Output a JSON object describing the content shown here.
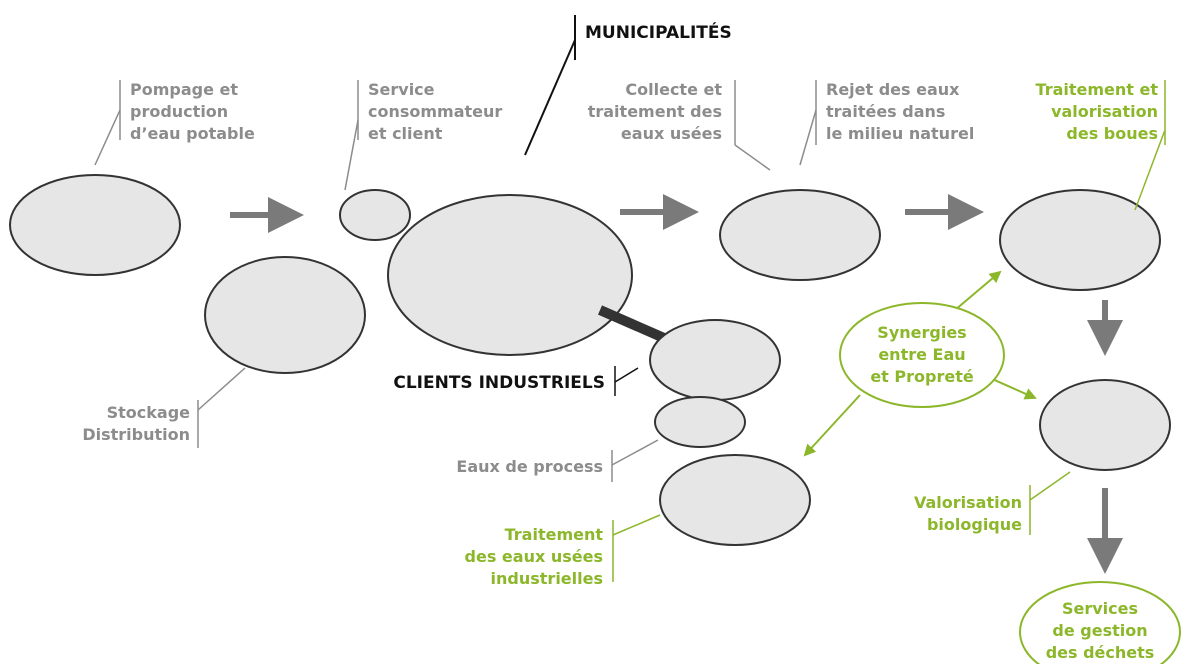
{
  "header": {
    "municipalites": "MUNICIPALITÉS",
    "clients_industriels": "CLIENTS INDUSTRIELS"
  },
  "labels": {
    "pompage": [
      "Pompage et",
      "production",
      "d’eau potable"
    ],
    "service": [
      "Service",
      "consommateur",
      "et client"
    ],
    "collecte": [
      "Collecte et",
      "traitement des",
      "eaux usées"
    ],
    "rejet": [
      "Rejet des eaux",
      "traitées dans",
      "le milieu naturel"
    ],
    "boues": [
      "Traitement et",
      "valorisation",
      "des boues"
    ],
    "stockage": [
      "Stockage",
      "Distribution"
    ],
    "process": [
      "Eaux de process"
    ],
    "industrielles": [
      "Traitement",
      "des eaux usées",
      "industrielles"
    ],
    "synergies": [
      "Synergies",
      "entre Eau",
      "et Propreté"
    ],
    "biologique": [
      "Valorisation",
      "biologique"
    ],
    "dechets": [
      "Services",
      "de gestion",
      "des déchets"
    ]
  }
}
